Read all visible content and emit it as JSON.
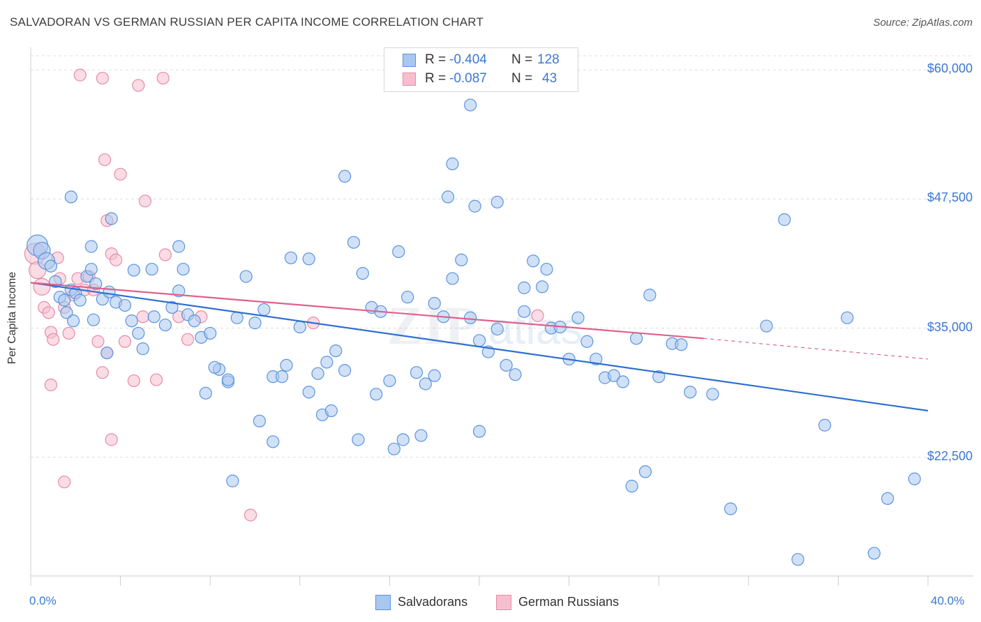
{
  "header": {
    "title": "SALVADORAN VS GERMAN RUSSIAN PER CAPITA INCOME CORRELATION CHART",
    "source": "Source: ZipAtlas.com"
  },
  "legend": {
    "rows": [
      {
        "r_label": "R = ",
        "r_value": "-0.404",
        "n_label": "N = ",
        "n_value": "128"
      },
      {
        "r_label": "R = ",
        "r_value": "-0.087",
        "n_label": "N = ",
        "n_value": "43"
      }
    ]
  },
  "bottom_legend": {
    "salvadorans": "Salvadorans",
    "german_russians": "German Russians"
  },
  "colors": {
    "blue_fill": "#a9c8f0",
    "blue_stroke": "#5b93dd",
    "blue_line": "#2e6fd2",
    "pink_fill": "#f6bfd0",
    "pink_stroke": "#e88aa8",
    "pink_line": "#e0608a",
    "axis_text": "#3a78d4",
    "grid": "#dddddd"
  },
  "chart_data": {
    "type": "scatter",
    "title": "SALVADORAN VS GERMAN RUSSIAN PER CAPITA INCOME CORRELATION CHART",
    "xlabel": "",
    "ylabel": "Per Capita Income",
    "x_unit": "%",
    "xlim": [
      0,
      40
    ],
    "ylim": [
      11000,
      61500
    ],
    "x_tick_labels": [
      "0.0%",
      "40.0%"
    ],
    "y_ticks": [
      22500,
      35000,
      47500,
      60000
    ],
    "y_tick_labels": [
      "$22,500",
      "$35,000",
      "$47,500",
      "$60,000"
    ],
    "grid": true,
    "legend_position": "top-center",
    "series": [
      {
        "name": "Salvadorans",
        "R": -0.404,
        "N": 128,
        "trend": {
          "x0": 0,
          "y0": 39400,
          "x1": 40,
          "y1": 27000
        },
        "points": [
          [
            0.3,
            43000
          ],
          [
            0.5,
            42500
          ],
          [
            0.7,
            41500
          ],
          [
            0.9,
            41000
          ],
          [
            1.1,
            39500
          ],
          [
            1.3,
            38000
          ],
          [
            1.5,
            37700
          ],
          [
            1.8,
            38700
          ],
          [
            2.0,
            38400
          ],
          [
            2.2,
            37700
          ],
          [
            1.6,
            36500
          ],
          [
            1.9,
            35700
          ],
          [
            2.5,
            40000
          ],
          [
            2.7,
            40700
          ],
          [
            2.9,
            39300
          ],
          [
            3.2,
            37800
          ],
          [
            3.5,
            38500
          ],
          [
            3.8,
            37500
          ],
          [
            3.4,
            32600
          ],
          [
            2.8,
            35800
          ],
          [
            4.2,
            37200
          ],
          [
            4.5,
            35700
          ],
          [
            4.8,
            34500
          ],
          [
            5.0,
            33000
          ],
          [
            5.5,
            36100
          ],
          [
            6.0,
            35300
          ],
          [
            6.3,
            37000
          ],
          [
            6.6,
            38600
          ],
          [
            7.0,
            36300
          ],
          [
            7.3,
            35700
          ],
          [
            7.6,
            34100
          ],
          [
            8.0,
            34500
          ],
          [
            8.4,
            31000
          ],
          [
            8.8,
            29800
          ],
          [
            9.2,
            36000
          ],
          [
            9.6,
            40000
          ],
          [
            10.0,
            35500
          ],
          [
            10.4,
            36800
          ],
          [
            10.8,
            30300
          ],
          [
            11.2,
            30300
          ],
          [
            11.6,
            41800
          ],
          [
            12.0,
            35100
          ],
          [
            12.4,
            41700
          ],
          [
            12.8,
            30600
          ],
          [
            13.2,
            31700
          ],
          [
            13.6,
            32800
          ],
          [
            14.0,
            30900
          ],
          [
            14.4,
            43300
          ],
          [
            14.8,
            40300
          ],
          [
            15.2,
            37000
          ],
          [
            15.6,
            36600
          ],
          [
            16.0,
            29900
          ],
          [
            16.4,
            42400
          ],
          [
            16.8,
            38000
          ],
          [
            17.2,
            30700
          ],
          [
            17.6,
            29600
          ],
          [
            18.0,
            37400
          ],
          [
            18.4,
            36100
          ],
          [
            18.8,
            39800
          ],
          [
            19.2,
            41600
          ],
          [
            19.6,
            36000
          ],
          [
            20.0,
            33800
          ],
          [
            20.4,
            32700
          ],
          [
            20.8,
            34900
          ],
          [
            21.2,
            31400
          ],
          [
            21.6,
            30500
          ],
          [
            22.0,
            36600
          ],
          [
            22.4,
            41500
          ],
          [
            22.8,
            39000
          ],
          [
            23.2,
            35000
          ],
          [
            23.6,
            35100
          ],
          [
            24.0,
            32000
          ],
          [
            24.4,
            36000
          ],
          [
            24.8,
            33700
          ],
          [
            25.2,
            32000
          ],
          [
            25.6,
            30200
          ],
          [
            26.0,
            30400
          ],
          [
            26.4,
            29800
          ],
          [
            27.0,
            34000
          ],
          [
            27.6,
            38200
          ],
          [
            28.0,
            30300
          ],
          [
            28.6,
            33500
          ],
          [
            29.0,
            33400
          ],
          [
            29.4,
            28800
          ],
          [
            30.4,
            28600
          ],
          [
            31.2,
            17500
          ],
          [
            32.8,
            35200
          ],
          [
            33.6,
            45500
          ],
          [
            34.2,
            12600
          ],
          [
            35.4,
            25600
          ],
          [
            36.4,
            36000
          ],
          [
            37.6,
            13200
          ],
          [
            38.2,
            18500
          ],
          [
            39.4,
            20400
          ],
          [
            26.8,
            19700
          ],
          [
            27.4,
            21100
          ],
          [
            19.6,
            56600
          ],
          [
            18.8,
            50900
          ],
          [
            18.6,
            47700
          ],
          [
            19.8,
            46800
          ],
          [
            20.8,
            47200
          ],
          [
            14.0,
            49700
          ],
          [
            11.4,
            31400
          ],
          [
            10.2,
            26000
          ],
          [
            10.8,
            24000
          ],
          [
            9.0,
            20200
          ],
          [
            8.8,
            30000
          ],
          [
            7.8,
            28700
          ],
          [
            8.2,
            31200
          ],
          [
            12.4,
            28800
          ],
          [
            13.0,
            26600
          ],
          [
            13.4,
            27000
          ],
          [
            14.6,
            24200
          ],
          [
            15.4,
            28600
          ],
          [
            16.2,
            23300
          ],
          [
            16.6,
            24200
          ],
          [
            17.4,
            24600
          ],
          [
            18.0,
            30400
          ],
          [
            20.0,
            25000
          ],
          [
            6.6,
            42900
          ],
          [
            5.4,
            40700
          ],
          [
            4.6,
            40600
          ],
          [
            3.6,
            45600
          ],
          [
            1.8,
            47700
          ],
          [
            2.7,
            42900
          ],
          [
            6.8,
            40700
          ],
          [
            22.0,
            38900
          ],
          [
            23.0,
            40700
          ]
        ]
      },
      {
        "name": "German Russians",
        "R": -0.087,
        "N": 43,
        "trend": {
          "x0": 0,
          "y0": 39400,
          "x1": 30,
          "y1": 34000,
          "x_dash_end": 40,
          "y_dash_end": 32000
        },
        "points": [
          [
            0.2,
            42200
          ],
          [
            0.3,
            40600
          ],
          [
            0.5,
            39000
          ],
          [
            0.6,
            37000
          ],
          [
            0.8,
            36500
          ],
          [
            0.9,
            34600
          ],
          [
            1.0,
            33900
          ],
          [
            1.2,
            41800
          ],
          [
            1.3,
            39800
          ],
          [
            1.5,
            37000
          ],
          [
            1.7,
            34500
          ],
          [
            1.9,
            38200
          ],
          [
            2.1,
            39800
          ],
          [
            2.4,
            38700
          ],
          [
            2.6,
            40000
          ],
          [
            2.8,
            38700
          ],
          [
            3.0,
            33700
          ],
          [
            3.2,
            30700
          ],
          [
            3.4,
            32600
          ],
          [
            3.6,
            42200
          ],
          [
            3.8,
            41600
          ],
          [
            4.2,
            33700
          ],
          [
            4.6,
            29900
          ],
          [
            5.0,
            36100
          ],
          [
            5.6,
            30000
          ],
          [
            6.0,
            42100
          ],
          [
            6.6,
            36100
          ],
          [
            7.0,
            33900
          ],
          [
            7.6,
            36100
          ],
          [
            3.4,
            45400
          ],
          [
            4.0,
            49900
          ],
          [
            5.1,
            47300
          ],
          [
            4.8,
            58500
          ],
          [
            5.9,
            59200
          ],
          [
            3.2,
            59200
          ],
          [
            2.2,
            59500
          ],
          [
            3.3,
            51300
          ],
          [
            3.6,
            24200
          ],
          [
            1.5,
            20100
          ],
          [
            9.8,
            16900
          ],
          [
            12.6,
            35500
          ],
          [
            22.6,
            36200
          ],
          [
            0.9,
            29500
          ]
        ]
      }
    ]
  }
}
